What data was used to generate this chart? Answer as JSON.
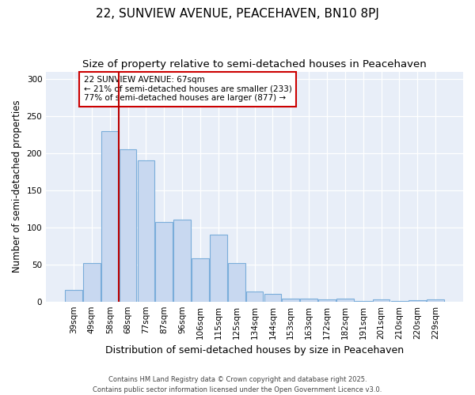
{
  "title": "22, SUNVIEW AVENUE, PEACEHAVEN, BN10 8PJ",
  "subtitle": "Size of property relative to semi-detached houses in Peacehaven",
  "xlabel": "Distribution of semi-detached houses by size in Peacehaven",
  "ylabel": "Number of semi-detached properties",
  "categories": [
    "39sqm",
    "49sqm",
    "58sqm",
    "68sqm",
    "77sqm",
    "87sqm",
    "96sqm",
    "106sqm",
    "115sqm",
    "125sqm",
    "134sqm",
    "144sqm",
    "153sqm",
    "163sqm",
    "172sqm",
    "182sqm",
    "191sqm",
    "201sqm",
    "210sqm",
    "220sqm",
    "229sqm"
  ],
  "values": [
    16,
    52,
    230,
    205,
    190,
    107,
    110,
    58,
    90,
    52,
    13,
    10,
    4,
    4,
    3,
    4,
    1,
    3,
    1,
    2,
    3
  ],
  "bar_color": "#c8d8f0",
  "bar_edge_color": "#7aadda",
  "property_line_index": 3,
  "highlight_line_color": "#bb0000",
  "annotation_line1": "22 SUNVIEW AVENUE: 67sqm",
  "annotation_line2": "← 21% of semi-detached houses are smaller (233)",
  "annotation_line3": "77% of semi-detached houses are larger (877) →",
  "annotation_box_facecolor": "#ffffff",
  "annotation_box_edgecolor": "#cc0000",
  "footnote_line1": "Contains HM Land Registry data © Crown copyright and database right 2025.",
  "footnote_line2": "Contains public sector information licensed under the Open Government Licence v3.0.",
  "ylim": [
    0,
    310
  ],
  "yticks": [
    0,
    50,
    100,
    150,
    200,
    250,
    300
  ],
  "fig_bg_color": "#ffffff",
  "plot_bg_color": "#e8eef8",
  "grid_color": "#ffffff",
  "title_fontsize": 11,
  "subtitle_fontsize": 9.5,
  "tick_fontsize": 7.5,
  "ylabel_fontsize": 8.5,
  "xlabel_fontsize": 9
}
